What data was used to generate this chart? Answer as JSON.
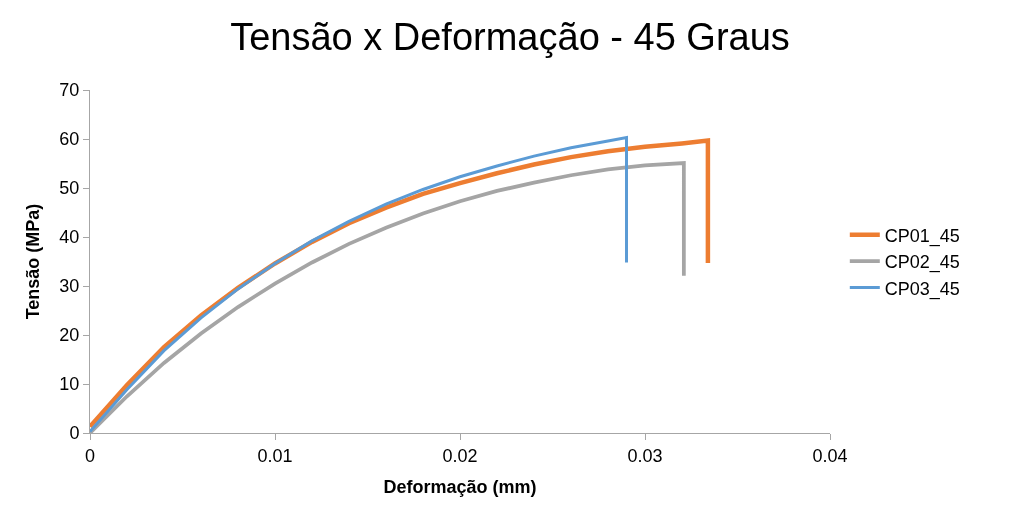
{
  "chart_data": {
    "type": "line",
    "title": "Tensão x Deformação - 45 Graus",
    "xlabel": "Deformação (mm)",
    "ylabel": "Tensão (MPa)",
    "xlim": [
      0,
      0.04
    ],
    "xticks": [
      {
        "value": 0,
        "label": "0"
      },
      0.01,
      0.02,
      0.03,
      0.04
    ],
    "ylim": [
      0,
      70
    ],
    "yticks": [
      0,
      10,
      20,
      30,
      40,
      50,
      60,
      70
    ],
    "legend": "right",
    "marker": "none",
    "line_style": "solid",
    "series": [
      {
        "name": "CP01_45",
        "color": "#ed7d31",
        "x": [
          0,
          0.002,
          0.004,
          0.006,
          0.008,
          0.01,
          0.012,
          0.014,
          0.016,
          0.018,
          0.02,
          0.022,
          0.024,
          0.026,
          0.028,
          0.03,
          0.032,
          0.0334,
          0.0334
        ],
        "values": [
          1.3,
          9.8,
          17.5,
          24.0,
          29.6,
          34.6,
          39.0,
          42.8,
          46.0,
          48.8,
          51.0,
          53.0,
          54.8,
          56.3,
          57.5,
          58.4,
          59.1,
          59.7,
          34.7
        ]
      },
      {
        "name": "CP02_45",
        "color": "#a5a5a5",
        "x": [
          0,
          0.002,
          0.004,
          0.006,
          0.008,
          0.01,
          0.012,
          0.014,
          0.016,
          0.018,
          0.02,
          0.022,
          0.024,
          0.026,
          0.028,
          0.03,
          0.0321,
          0.0321
        ],
        "values": [
          0,
          7.5,
          14.3,
          20.3,
          25.7,
          30.5,
          34.8,
          38.6,
          41.9,
          44.8,
          47.3,
          49.4,
          51.1,
          52.6,
          53.8,
          54.6,
          55.1,
          32.1
        ]
      },
      {
        "name": "CP03_45",
        "color": "#5b9bd5",
        "x": [
          0,
          0.002,
          0.004,
          0.006,
          0.008,
          0.01,
          0.012,
          0.014,
          0.016,
          0.018,
          0.02,
          0.022,
          0.024,
          0.026,
          0.028,
          0.029,
          0.029
        ],
        "values": [
          0.3,
          8.9,
          16.8,
          23.5,
          29.4,
          34.6,
          39.2,
          43.2,
          46.7,
          49.7,
          52.3,
          54.5,
          56.5,
          58.2,
          59.6,
          60.3,
          34.8
        ]
      }
    ]
  }
}
